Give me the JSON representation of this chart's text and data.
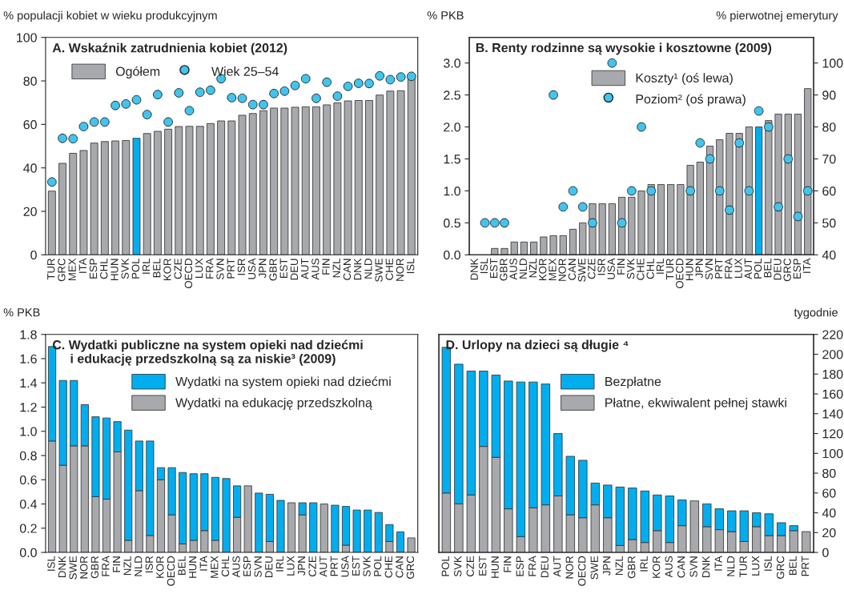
{
  "chart_data": [
    {
      "type": "bar",
      "title": "A. Wskaźnik zatrudnienia kobiet (2012)",
      "ylabel": "% populacji kobiet w wieku produkcyjnym",
      "categories": [
        "TUR",
        "GRC",
        "MEX",
        "ITA",
        "ESP",
        "CHL",
        "HUN",
        "SVK",
        "POL",
        "IRL",
        "BEL",
        "KOR",
        "CZE",
        "OECD",
        "LUX",
        "FRA",
        "SVN",
        "PRT",
        "ISR",
        "USA",
        "JPN",
        "GBR",
        "EST",
        "DEU",
        "AUT",
        "AUS",
        "FIN",
        "NZL",
        "CAN",
        "DNK",
        "NLD",
        "SWE",
        "CHE",
        "NOR",
        "ISL"
      ],
      "series": [
        {
          "name": "Ogółem",
          "type": "bar",
          "color": "#a7a9ac",
          "colors": [
            "#a7a9ac",
            "#a7a9ac",
            "#a7a9ac",
            "#a7a9ac",
            "#a7a9ac",
            "#a7a9ac",
            "#a7a9ac",
            "#a7a9ac",
            "#00aeef",
            "#a7a9ac",
            "#a7a9ac",
            "#a7a9ac",
            "#a7a9ac",
            "#a7a9ac",
            "#a7a9ac",
            "#a7a9ac",
            "#a7a9ac",
            "#a7a9ac",
            "#a7a9ac",
            "#a7a9ac",
            "#a7a9ac",
            "#a7a9ac",
            "#a7a9ac",
            "#a7a9ac",
            "#a7a9ac",
            "#a7a9ac",
            "#a7a9ac",
            "#a7a9ac",
            "#a7a9ac",
            "#a7a9ac",
            "#a7a9ac",
            "#a7a9ac",
            "#a7a9ac",
            "#a7a9ac",
            "#a7a9ac"
          ],
          "values": [
            29.3,
            42.1,
            46.7,
            48.0,
            51.4,
            52.1,
            52.4,
            52.6,
            53.6,
            55.8,
            56.8,
            57.8,
            59.0,
            59.1,
            59.1,
            60.4,
            61.6,
            61.6,
            64.2,
            65.0,
            66.3,
            67.5,
            67.5,
            67.9,
            68.1,
            68.1,
            69.0,
            69.9,
            70.8,
            71.0,
            71.0,
            73.5,
            75.3,
            75.5,
            81.4
          ]
        },
        {
          "name": "Wiek 25–54",
          "type": "scatter",
          "color": "#41c4ee",
          "values": [
            33.5,
            53.6,
            53.4,
            59.0,
            61.1,
            61.1,
            68.7,
            69.4,
            71.3,
            64.5,
            73.7,
            61.1,
            74.5,
            66.3,
            74.8,
            75.7,
            81.0,
            72.3,
            72.0,
            69.1,
            69.1,
            74.2,
            75.3,
            77.9,
            81.0,
            72.0,
            79.4,
            73.0,
            77.5,
            78.9,
            78.8,
            82.3,
            80.6,
            81.8,
            82.1
          ]
        }
      ],
      "ylim": [
        0,
        100
      ],
      "yticks": [
        0,
        20,
        40,
        60,
        80,
        100
      ],
      "legend": "top left",
      "marker": "circle"
    },
    {
      "type": "bar",
      "title": "B. Renty rodzinne są wysokie i kosztowne (2009)",
      "ylabel": "% PKB",
      "y2label": "% pierwotnej emerytury",
      "categories": [
        "DNK",
        "ISL",
        "EST",
        "GBR",
        "AUS",
        "NLD",
        "NZL",
        "KOR",
        "MEX",
        "NOR",
        "CAN",
        "SWE",
        "CZE",
        "ISR",
        "USA",
        "FIN",
        "SVK",
        "CHE",
        "CHL",
        "IRL",
        "TUR",
        "OECD",
        "HUN",
        "JPN",
        "SVN",
        "PRT",
        "FRA",
        "LUX",
        "AUT",
        "POL",
        "BEL",
        "DEU",
        "GRC",
        "ESP",
        "ITA"
      ],
      "series": [
        {
          "name": "Koszty¹ (oś lewa)",
          "type": "bar",
          "color": "#a7a9ac",
          "colors": [
            "#a7a9ac",
            "#a7a9ac",
            "#a7a9ac",
            "#a7a9ac",
            "#a7a9ac",
            "#a7a9ac",
            "#a7a9ac",
            "#a7a9ac",
            "#a7a9ac",
            "#a7a9ac",
            "#a7a9ac",
            "#a7a9ac",
            "#a7a9ac",
            "#a7a9ac",
            "#a7a9ac",
            "#a7a9ac",
            "#a7a9ac",
            "#a7a9ac",
            "#a7a9ac",
            "#a7a9ac",
            "#a7a9ac",
            "#a7a9ac",
            "#a7a9ac",
            "#a7a9ac",
            "#a7a9ac",
            "#a7a9ac",
            "#a7a9ac",
            "#a7a9ac",
            "#a7a9ac",
            "#00aeef",
            "#a7a9ac",
            "#a7a9ac",
            "#a7a9ac",
            "#a7a9ac",
            "#a7a9ac"
          ],
          "values": [
            null,
            null,
            0.1,
            0.1,
            0.2,
            0.2,
            0.2,
            0.28,
            0.3,
            0.3,
            0.4,
            0.5,
            0.8,
            0.8,
            0.8,
            0.9,
            0.9,
            1.0,
            1.1,
            1.1,
            1.1,
            1.1,
            1.4,
            1.45,
            1.7,
            1.8,
            1.9,
            1.9,
            2.0,
            2.0,
            2.1,
            2.2,
            2.2,
            2.2,
            2.6
          ]
        },
        {
          "name": "Poziom² (oś prawa)",
          "type": "scatter",
          "axis": "y2",
          "color": "#41c4ee",
          "values": [
            null,
            50,
            50,
            50,
            null,
            null,
            null,
            null,
            90,
            55,
            60,
            55,
            50,
            null,
            100,
            50,
            60,
            80,
            60,
            null,
            null,
            null,
            60,
            75,
            70,
            60,
            54,
            75,
            60,
            85,
            80,
            55,
            70,
            52,
            60
          ]
        }
      ],
      "ylim": [
        0,
        3.4
      ],
      "yticks": [
        {
          "value": 0,
          "label": "0.0"
        },
        {
          "value": 0.5,
          "label": "0.5"
        },
        {
          "value": 1,
          "label": "1.0"
        },
        {
          "value": 1.5,
          "label": "1.5"
        },
        {
          "value": 2,
          "label": "2.0"
        },
        {
          "value": 2.5,
          "label": "2.5"
        },
        {
          "value": 3,
          "label": "3.0"
        }
      ],
      "y2lim": [
        40,
        108
      ],
      "y2ticks": [
        40,
        50,
        60,
        70,
        80,
        90,
        100
      ],
      "legend": "top",
      "marker": "circle"
    },
    {
      "type": "bar",
      "title": "C. Wydatki publiczne na system opieki nad dziećmi\n     i edukację przedszkolną są za niskie³ (2009)",
      "ylabel": "% PKB",
      "stacked": true,
      "categories": [
        "ISL",
        "DNK",
        "SWE",
        "NOR",
        "GBR",
        "FRA",
        "FIN",
        "NZL",
        "NLD",
        "ISR",
        "KOR",
        "OECD",
        "BEL",
        "HUN",
        "ITA",
        "MEX",
        "CHL",
        "AUS",
        "ESP",
        "SVN",
        "DEU",
        "IRL",
        "LUX",
        "JPN",
        "CZE",
        "AUT",
        "PRT",
        "USA",
        "EST",
        "SVK",
        "POL",
        "CHE",
        "CAN",
        "GRC"
      ],
      "series": [
        {
          "name": "Wydatki na edukację przedszkolną",
          "color": "#a7a9ac",
          "values": [
            0.92,
            0.72,
            0.88,
            0.88,
            0.46,
            0.44,
            0.83,
            0.1,
            0.51,
            0.14,
            0.6,
            0.31,
            0.07,
            0.1,
            0.18,
            0.1,
            null,
            0.29,
            0.55,
            null,
            0.09,
            null,
            0.41,
            0.31,
            null,
            0.4,
            null,
            0.06,
            null,
            null,
            null,
            0.09,
            null,
            0.12
          ]
        },
        {
          "name": "Wydatki na system opieki nad dziećmi",
          "color": "#00aeef",
          "values": [
            0.78,
            0.7,
            0.54,
            0.34,
            0.66,
            0.67,
            0.25,
            0.91,
            0.41,
            0.78,
            0.1,
            0.39,
            0.59,
            0.55,
            0.47,
            0.52,
            0.61,
            0.26,
            null,
            0.49,
            0.39,
            0.43,
            null,
            0.1,
            0.41,
            null,
            0.39,
            0.32,
            0.35,
            0.35,
            0.33,
            0.14,
            0.17,
            null
          ]
        }
      ],
      "ylim": [
        0,
        1.8
      ],
      "yticks": [
        {
          "value": 0,
          "label": "0.0"
        },
        {
          "value": 0.2,
          "label": "0.2"
        },
        {
          "value": 0.4,
          "label": "0.4"
        },
        {
          "value": 0.6,
          "label": "0.6"
        },
        {
          "value": 0.8,
          "label": "0.8"
        },
        {
          "value": 1,
          "label": "1.0"
        },
        {
          "value": 1.2,
          "label": "1.2"
        },
        {
          "value": 1.4,
          "label": "1.4"
        },
        {
          "value": 1.6,
          "label": "1.6"
        },
        {
          "value": 1.8,
          "label": "1.8"
        }
      ],
      "legend": "top right"
    },
    {
      "type": "bar",
      "title": "D. Urlopy na dzieci są długie ⁴",
      "y2label": "tygodnie",
      "stacked": true,
      "categories": [
        "POL",
        "SVK",
        "CZE",
        "EST",
        "HUN",
        "FIN",
        "ESP",
        "FRA",
        "DEU",
        "AUT",
        "NOR",
        "OECD",
        "SWE",
        "JPN",
        "NZL",
        "GBR",
        "IRL",
        "KOR",
        "AUS",
        "CAN",
        "SVN",
        "DNK",
        "ITA",
        "NLD",
        "TUR",
        "LUX",
        "ISL",
        "GRC",
        "BEL",
        "PRT"
      ],
      "series": [
        {
          "name": "Płatne, ekwiwalent pełnej stawki",
          "axis": "y2",
          "color": "#a7a9ac",
          "values": [
            60,
            49,
            58,
            107,
            96,
            44,
            16,
            45,
            48,
            57,
            38,
            35,
            48,
            35,
            7,
            13,
            10,
            22,
            10,
            27,
            52,
            26,
            23,
            21,
            11,
            26,
            17,
            17,
            22,
            21
          ]
        },
        {
          "name": "Bezpłatne",
          "axis": "y2",
          "color": "#00aeef",
          "values": [
            147,
            141,
            125,
            76,
            83,
            129,
            156,
            127,
            122,
            63,
            59,
            58,
            22,
            33,
            59,
            52,
            52,
            36,
            47,
            26,
            null,
            23,
            21,
            21,
            31,
            14,
            22,
            13,
            5,
            null
          ]
        }
      ],
      "y2lim": [
        0,
        220
      ],
      "y2ticks": [
        0,
        20,
        40,
        60,
        80,
        100,
        120,
        140,
        160,
        180,
        200,
        220
      ],
      "legend": "top right"
    }
  ]
}
